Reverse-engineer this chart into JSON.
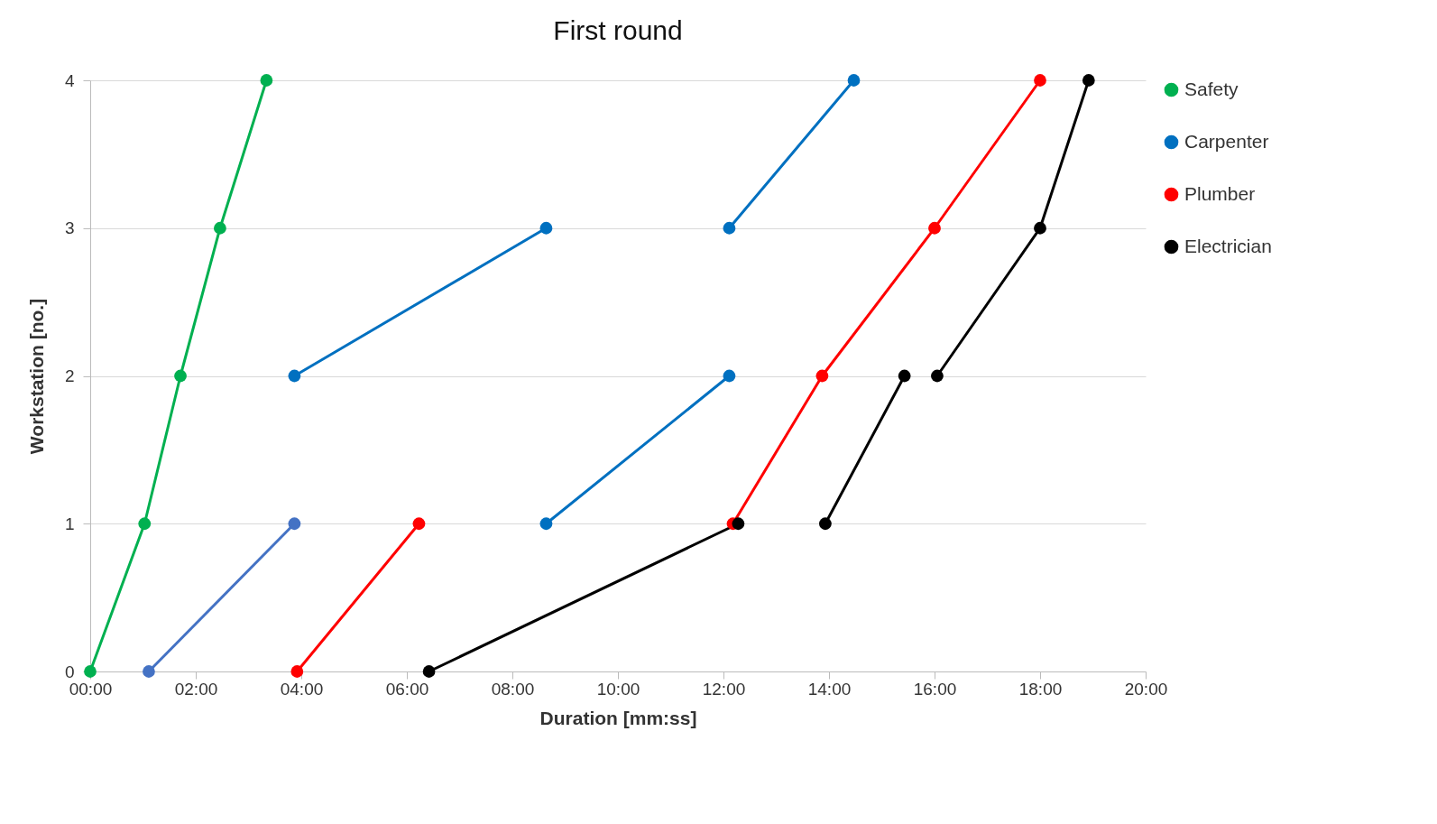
{
  "chart_data": {
    "type": "line",
    "title": "First round",
    "xlabel": "Duration [mm:ss]",
    "ylabel": "Workstation [no.]",
    "xlim": [
      0,
      20
    ],
    "xticks": [
      {
        "value": 0,
        "label": "00:00"
      },
      {
        "value": 2,
        "label": "02:00"
      },
      {
        "value": 4,
        "label": "04:00"
      },
      {
        "value": 6,
        "label": "06:00"
      },
      {
        "value": 8,
        "label": "08:00"
      },
      {
        "value": 10,
        "label": "10:00"
      },
      {
        "value": 12,
        "label": "12:00"
      },
      {
        "value": 14,
        "label": "14:00"
      },
      {
        "value": 16,
        "label": "16:00"
      },
      {
        "value": 18,
        "label": "18:00"
      },
      {
        "value": 20,
        "label": "20:00"
      }
    ],
    "ylim": [
      0,
      4
    ],
    "yticks": [
      0,
      1,
      2,
      3,
      4
    ],
    "grid": "y",
    "legend": "right",
    "marker": "circle",
    "line_style": "solid",
    "series": [
      {
        "name": "Safety",
        "color": "#00b050",
        "x": [
          0,
          1.03,
          1.71,
          2.46,
          3.34
        ],
        "values": [
          0,
          1,
          2,
          3,
          4
        ]
      },
      {
        "name": "Carpenter",
        "color": "#0070c0",
        "x": [
          3.87,
          8.64,
          null,
          8.64,
          12.11,
          null,
          12.11,
          14.47
        ],
        "values": [
          2,
          3,
          null,
          1,
          2,
          null,
          3,
          4
        ]
      },
      {
        "color": "#4472c4",
        "x": [
          1.11,
          3.87
        ],
        "values": [
          0,
          1
        ]
      },
      {
        "name": "Plumber",
        "color": "#ff0000",
        "x": [
          3.92,
          6.23,
          null,
          12.18,
          13.87,
          16.0,
          18.0
        ],
        "values": [
          0,
          1,
          null,
          1,
          2,
          3,
          4
        ]
      },
      {
        "name": "Electrician",
        "color": "#000000",
        "x": [
          6.42,
          12.28,
          null,
          13.93,
          15.43,
          null,
          16.05,
          18.0,
          18.92
        ],
        "values": [
          0,
          1,
          null,
          1,
          2,
          null,
          2,
          3,
          4
        ]
      }
    ]
  }
}
